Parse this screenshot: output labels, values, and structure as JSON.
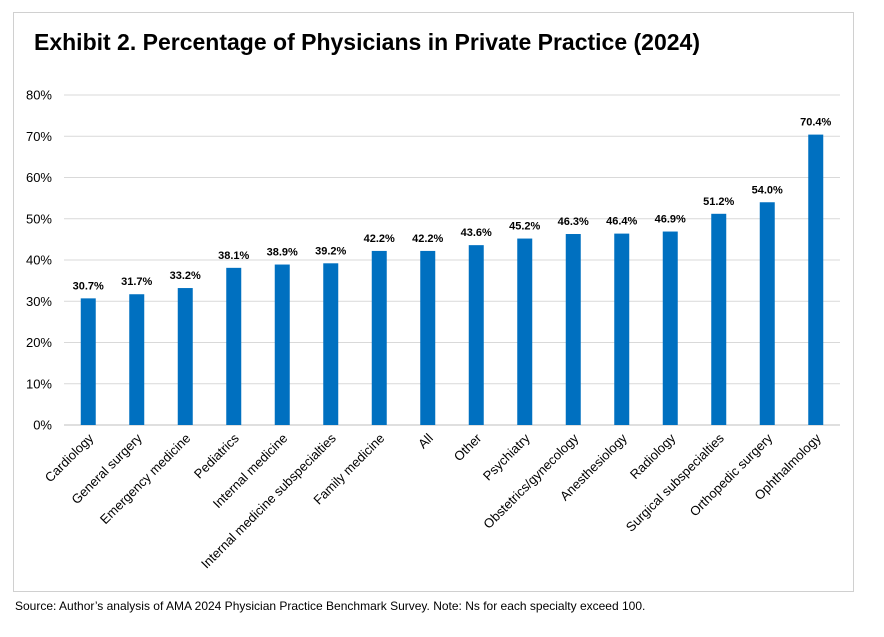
{
  "title": "Exhibit 2. Percentage of Physicians in Private Practice (2024)",
  "source_note": "Source: Author’s analysis of AMA 2024 Physician Practice Benchmark Survey. Note: Ns for each specialty exceed 100.",
  "colors": {
    "bar": "#0070C0",
    "grid": "#d9d9d9",
    "axis": "#bfbfbf",
    "text": "#000000"
  },
  "chart_data": {
    "type": "bar",
    "title": "Exhibit 2. Percentage of Physicians in Private Practice (2024)",
    "xlabel": "",
    "ylabel": "",
    "ylim": [
      0,
      80
    ],
    "ytick_step": 10,
    "ytick_suffix": "%",
    "grid": true,
    "legend": "none",
    "categories": [
      "Cardiology",
      "General surgery",
      "Emergency medicine",
      "Pediatrics",
      "Internal medicine",
      "Internal medicine subspecialties",
      "Family medicine",
      "All",
      "Other",
      "Psychiatry",
      "Obstetrics/gynecology",
      "Anesthesiology",
      "Radiology",
      "Surgical subspecialties",
      "Orthopedic surgery",
      "Ophthalmology"
    ],
    "values": [
      30.7,
      31.7,
      33.2,
      38.1,
      38.9,
      39.2,
      42.2,
      42.2,
      43.6,
      45.2,
      46.3,
      46.4,
      46.9,
      51.2,
      54.0,
      70.4
    ],
    "data_labels": [
      "30.7%",
      "31.7%",
      "33.2%",
      "38.1%",
      "38.9%",
      "39.2%",
      "42.2%",
      "42.2%",
      "43.6%",
      "45.2%",
      "46.3%",
      "46.4%",
      "46.9%",
      "51.2%",
      "54.0%",
      "70.4%"
    ]
  }
}
